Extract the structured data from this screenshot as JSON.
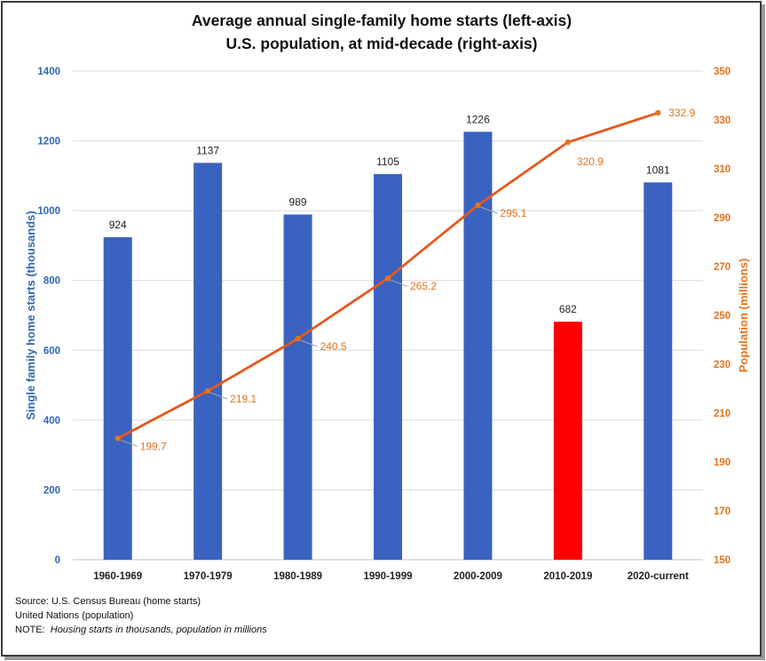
{
  "chart_data": {
    "type": "bar+line",
    "title": "Average annual single-family home starts (left-axis)",
    "subtitle": "U.S. population, at mid-decade (right-axis)",
    "categories": [
      "1960-1969",
      "1970-1979",
      "1980-1989",
      "1990-1999",
      "2000-2009",
      "2010-2019",
      "2020-current"
    ],
    "series": [
      {
        "name": "Single family home starts (thousands)",
        "type": "bar",
        "axis": "left",
        "values": [
          924,
          1137,
          989,
          1105,
          1226,
          682,
          1081
        ],
        "labels": [
          "924",
          "1137",
          "989",
          "1105",
          "1226",
          "682",
          "1081"
        ],
        "color": "#3a62c0",
        "highlight_color": "#ff0000",
        "highlight_index": 5
      },
      {
        "name": "Population (millions)",
        "type": "line",
        "axis": "right",
        "values": [
          199.7,
          219.1,
          240.5,
          265.2,
          295.1,
          320.9,
          332.9
        ],
        "labels": [
          "199.7",
          "219.1",
          "240.5",
          "265.2",
          "295.1",
          "320.9",
          "332.9"
        ],
        "color": "#e4581e"
      }
    ],
    "ylabel": "Single family home starts (thousands)",
    "y2label": "Population (millions)",
    "ylim": [
      0,
      1400
    ],
    "y2lim": [
      150,
      350
    ],
    "yticks": [
      "0",
      "200",
      "400",
      "600",
      "800",
      "1000",
      "1200",
      "1400"
    ],
    "y2ticks": [
      "150",
      "170",
      "190",
      "210",
      "230",
      "250",
      "270",
      "290",
      "310",
      "330",
      "350"
    ],
    "grid": true
  },
  "notes": {
    "source": "Source: U.S. Census Bureau (home starts)",
    "source2": "United Nations (population)",
    "note_prefix": "NOTE:",
    "note_text": "Housing starts in thousands, population in millions"
  }
}
